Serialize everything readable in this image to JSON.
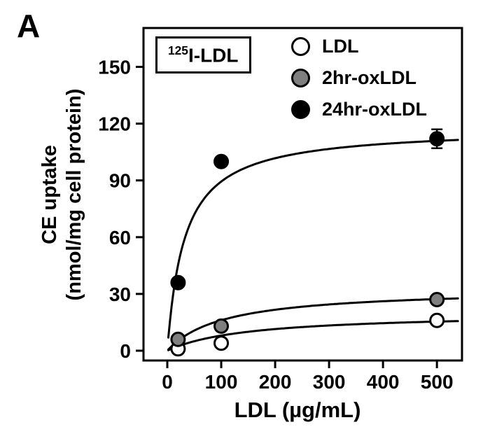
{
  "panel_label": "A",
  "annotation": {
    "sup": "125",
    "text": "I-LDL"
  },
  "legend": [
    {
      "label": "LDL",
      "fill": "#ffffff"
    },
    {
      "label": "2hr-oxLDL",
      "fill": "#7f7f7f"
    },
    {
      "label": "24hr-oxLDL",
      "fill": "#000000"
    }
  ],
  "chart_data": {
    "type": "scatter",
    "title": "",
    "xlabel": "LDL (µg/mL)",
    "ylabel": "CE uptake (nmol/mg cell protein)",
    "ylabel_lines": [
      "CE uptake",
      "(nmol/mg cell protein)"
    ],
    "xlim": [
      0,
      540
    ],
    "ylim": [
      0,
      165
    ],
    "x_ticks": [
      0,
      100,
      200,
      300,
      400,
      500
    ],
    "y_ticks": [
      0,
      30,
      60,
      90,
      120,
      150
    ],
    "x": [
      20,
      100,
      500
    ],
    "grid": false,
    "legend_position": "top-right",
    "series": [
      {
        "name": "LDL",
        "fill": "#ffffff",
        "values": [
          1,
          4,
          16
        ],
        "fit": {
          "type": "saturation",
          "vmax": 20,
          "km": 150
        }
      },
      {
        "name": "2hr-oxLDL",
        "fill": "#7f7f7f",
        "values": [
          6,
          13,
          27
        ],
        "fit": {
          "type": "saturation",
          "vmax": 33,
          "km": 105
        }
      },
      {
        "name": "24hr-oxLDL",
        "fill": "#000000",
        "values": [
          36,
          100,
          112
        ],
        "y_err": [
          0,
          0,
          5
        ],
        "fit": {
          "type": "saturation",
          "vmax": 118,
          "km": 32
        }
      }
    ]
  }
}
